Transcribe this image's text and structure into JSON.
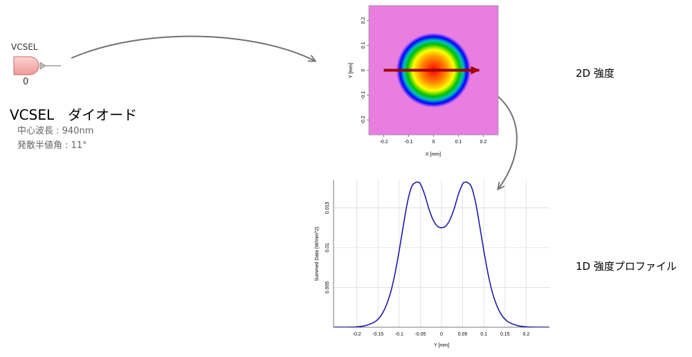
{
  "component": {
    "label": "VCSEL",
    "index": "0",
    "title": "VCSEL　ダイオード",
    "specs": [
      "中心波長 : 940nm",
      "発散半値角 : 11°"
    ]
  },
  "labels": {
    "intensity_2d": "2D 強度",
    "intensity_1d": "1D 強度プロファイル"
  },
  "colors": {
    "diode_fill": "#f7b2b0",
    "background_2d": "#e97de0",
    "cut_arrow": "#a00000",
    "curve": "#1a1aa8",
    "flow_arrow": "#707070"
  },
  "chart_data": [
    {
      "type": "heatmap",
      "xlabel": "X [mm]",
      "ylabel": "Y [mm]",
      "xlim": [
        -0.26,
        0.26
      ],
      "ylim": [
        -0.26,
        0.26
      ],
      "xticks": [
        -0.2,
        -0.1,
        0,
        0.1,
        0.2
      ],
      "yticks": [
        -0.2,
        -0.1,
        0,
        0.1,
        0.2
      ],
      "grid": false,
      "beam_center": [
        0,
        0
      ],
      "beam_radius_mm": 0.15,
      "colormap": [
        "#ff0000",
        "#ff8c00",
        "#ffff00",
        "#00c000",
        "#00c0c0",
        "#0000ff",
        "#e97de0"
      ],
      "annotation": "horizontal cut at Y = 0 from X = -0.2 to X = 0.2"
    },
    {
      "type": "line",
      "xlabel": "Y [mm]",
      "ylabel": "Summed Data (W/mm^2)",
      "xlim": [
        -0.255,
        0.255
      ],
      "ylim": [
        0,
        0.0185
      ],
      "xticks": [
        -0.2,
        -0.15,
        -0.1,
        -0.05,
        0,
        0.05,
        0.1,
        0.15,
        0.2
      ],
      "yticks": [
        0.005,
        0.01,
        0.015
      ],
      "grid": true,
      "x": [
        -0.255,
        -0.22,
        -0.2,
        -0.18,
        -0.16,
        -0.15,
        -0.14,
        -0.13,
        -0.12,
        -0.11,
        -0.1,
        -0.09,
        -0.08,
        -0.07,
        -0.06,
        -0.055,
        -0.05,
        -0.04,
        -0.03,
        -0.02,
        -0.01,
        0,
        0.01,
        0.02,
        0.03,
        0.04,
        0.05,
        0.055,
        0.06,
        0.07,
        0.08,
        0.09,
        0.1,
        0.11,
        0.12,
        0.13,
        0.14,
        0.15,
        0.16,
        0.18,
        0.2,
        0.22,
        0.255
      ],
      "y": [
        0,
        1e-05,
        5e-05,
        0.0002,
        0.0006,
        0.001,
        0.0017,
        0.0028,
        0.0044,
        0.0067,
        0.0096,
        0.0128,
        0.0158,
        0.0177,
        0.0182,
        0.0182,
        0.018,
        0.0167,
        0.0149,
        0.0135,
        0.0127,
        0.0125,
        0.0127,
        0.0135,
        0.0149,
        0.0167,
        0.018,
        0.0182,
        0.0182,
        0.0177,
        0.0158,
        0.0128,
        0.0096,
        0.0067,
        0.0044,
        0.0028,
        0.0017,
        0.001,
        0.0006,
        0.0002,
        5e-05,
        1e-05,
        0
      ]
    }
  ]
}
